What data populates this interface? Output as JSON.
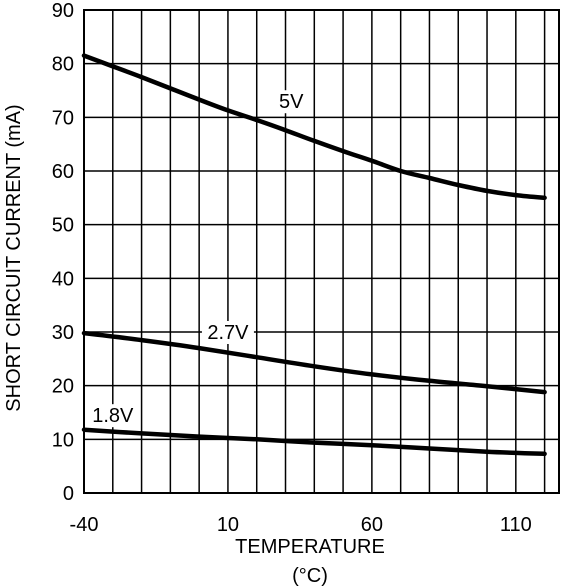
{
  "chart_data": {
    "type": "line",
    "xlabel_line1": "TEMPERATURE",
    "xlabel_line2": "(°C)",
    "ylabel": "SHORT CIRCUIT CURRENT (mA)",
    "xlim": [
      -40,
      125
    ],
    "ylim": [
      0,
      90
    ],
    "x_ticks": [
      -40,
      10,
      60,
      110
    ],
    "x_tick_labels": [
      "-40",
      "10",
      "60",
      "110"
    ],
    "y_ticks": [
      0,
      10,
      20,
      30,
      40,
      50,
      60,
      70,
      80,
      90
    ],
    "y_tick_labels": [
      "0",
      "10",
      "20",
      "30",
      "40",
      "50",
      "60",
      "70",
      "80",
      "90"
    ],
    "grid": true,
    "x_grid_step": 10,
    "y_grid_step": 10,
    "series": [
      {
        "name": "5V",
        "label_at": [
          32,
          73
        ],
        "x": [
          -40,
          -30,
          -20,
          -10,
          0,
          10,
          20,
          30,
          40,
          50,
          60,
          70,
          80,
          90,
          100,
          110,
          120
        ],
        "y": [
          81.5,
          79.5,
          77.5,
          75.4,
          73.3,
          71.3,
          69.5,
          67.6,
          65.6,
          63.7,
          61.9,
          60,
          58.7,
          57.4,
          56.3,
          55.5,
          55
        ]
      },
      {
        "name": "2.7V",
        "label_at": [
          10,
          30
        ],
        "x": [
          -40,
          -20,
          0,
          20,
          40,
          60,
          80,
          100,
          120
        ],
        "y": [
          29.8,
          28.5,
          27,
          25.3,
          23.6,
          22.1,
          20.9,
          19.9,
          18.8
        ]
      },
      {
        "name": "1.8V",
        "label_at": [
          -30,
          14.5
        ],
        "x": [
          -40,
          -20,
          0,
          20,
          40,
          60,
          80,
          100,
          120
        ],
        "y": [
          11.8,
          11.1,
          10.5,
          10,
          9.4,
          8.9,
          8.3,
          7.7,
          7.3
        ]
      }
    ]
  }
}
